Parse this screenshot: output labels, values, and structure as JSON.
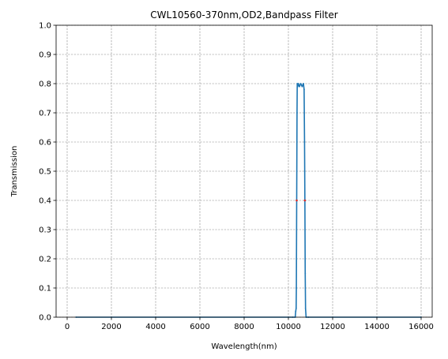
{
  "chart_data": {
    "type": "line",
    "title": "CWL10560-370nm,OD2,Bandpass Filter",
    "xlabel": "Wavelength(nm)",
    "ylabel": "Transmission",
    "xlim": [
      -500,
      16500
    ],
    "ylim": [
      0,
      1.0
    ],
    "xticks": [
      0,
      2000,
      4000,
      6000,
      8000,
      10000,
      12000,
      14000,
      16000
    ],
    "xtick_labels": [
      "0",
      "2000",
      "4000",
      "6000",
      "8000",
      "10000",
      "12000",
      "14000",
      "16000"
    ],
    "yticks": [
      0.0,
      0.1,
      0.2,
      0.3,
      0.4,
      0.5,
      0.6,
      0.7,
      0.8,
      0.9,
      1.0
    ],
    "ytick_labels": [
      "0.0",
      "0.1",
      "0.2",
      "0.3",
      "0.4",
      "0.5",
      "0.6",
      "0.7",
      "0.8",
      "0.9",
      "1.0"
    ],
    "grid": true,
    "series": [
      {
        "color": "#1f77b4",
        "x": [
          400,
          10200,
          10310,
          10330,
          10350,
          10360,
          10375,
          10390,
          10400,
          10420,
          10450,
          10500,
          10560,
          10620,
          10680,
          10710,
          10730,
          10745,
          10760,
          10775,
          10800,
          10900,
          16000
        ],
        "y": [
          0.0,
          0.0,
          0.0,
          0.02,
          0.03,
          0.1,
          0.4,
          0.7,
          0.8,
          0.79,
          0.8,
          0.79,
          0.8,
          0.79,
          0.8,
          0.78,
          0.6,
          0.4,
          0.15,
          0.03,
          0.0,
          0.0,
          0.0
        ]
      }
    ],
    "markers": [
      {
        "color": "#d62728",
        "x": [
          10375,
          10745
        ],
        "y": [
          0.4,
          0.4
        ]
      }
    ]
  }
}
